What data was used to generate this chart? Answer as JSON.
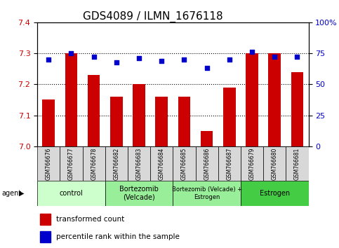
{
  "title": "GDS4089 / ILMN_1676118",
  "samples": [
    "GSM766676",
    "GSM766677",
    "GSM766678",
    "GSM766682",
    "GSM766683",
    "GSM766684",
    "GSM766685",
    "GSM766686",
    "GSM766687",
    "GSM766679",
    "GSM766680",
    "GSM766681"
  ],
  "bar_values": [
    7.15,
    7.3,
    7.23,
    7.16,
    7.2,
    7.16,
    7.16,
    7.05,
    7.19,
    7.3,
    7.3,
    7.24
  ],
  "percentile_values": [
    70,
    75,
    72,
    68,
    71,
    69,
    70,
    63,
    70,
    76,
    72,
    72
  ],
  "bar_color": "#cc0000",
  "dot_color": "#0000cc",
  "ylim_left": [
    7.0,
    7.4
  ],
  "ylim_right": [
    0,
    100
  ],
  "yticks_left": [
    7.0,
    7.1,
    7.2,
    7.3,
    7.4
  ],
  "yticks_right": [
    0,
    25,
    50,
    75,
    100
  ],
  "groups": [
    {
      "label": "control",
      "start": 0,
      "end": 3
    },
    {
      "label": "Bortezomib\n(Velcade)",
      "start": 3,
      "end": 6
    },
    {
      "label": "Bortezomib (Velcade) +\nEstrogen",
      "start": 6,
      "end": 9
    },
    {
      "label": "Estrogen",
      "start": 9,
      "end": 12
    }
  ],
  "group_colors": [
    "#ccffcc",
    "#99ee99",
    "#99ee99",
    "#44cc44"
  ],
  "agent_label": "agent",
  "legend_bar_label": "transformed count",
  "legend_dot_label": "percentile rank within the sample",
  "bar_width": 0.55,
  "ylabel_left_color": "#cc0000",
  "ylabel_right_color": "#0000cc",
  "title_fontsize": 11,
  "sample_bg_color": "#d8d8d8"
}
